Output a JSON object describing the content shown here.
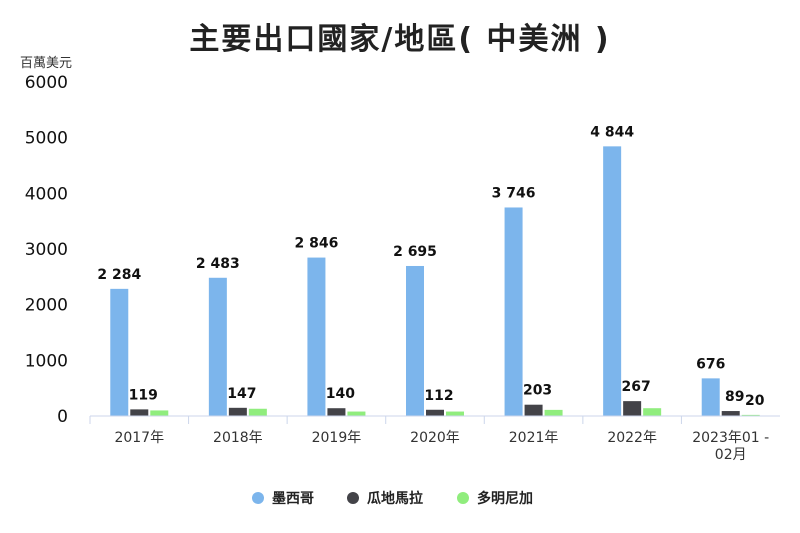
{
  "chart_data": {
    "type": "bar",
    "title": "主要出口國家/地區( 中美洲 )",
    "ylabel": "百萬美元",
    "xlabel": "",
    "ylim": [
      0,
      6000
    ],
    "yticks": [
      0,
      1000,
      2000,
      3000,
      4000,
      5000,
      6000
    ],
    "categories": [
      [
        "2017年"
      ],
      [
        "2018年"
      ],
      [
        "2019年"
      ],
      [
        "2020年"
      ],
      [
        "2021年"
      ],
      [
        "2022年"
      ],
      [
        "2023年01 -",
        "02月"
      ]
    ],
    "series": [
      {
        "name": "墨西哥",
        "color": "#7cb5ec",
        "values": [
          2284,
          2483,
          2846,
          2695,
          3746,
          4844,
          676
        ],
        "labels": [
          "2 284",
          "2 483",
          "2 846",
          "2 695",
          "3 746",
          "4 844",
          "676"
        ]
      },
      {
        "name": "瓜地馬拉",
        "color": "#434348",
        "values": [
          119,
          147,
          140,
          112,
          203,
          267,
          89
        ],
        "labels": [
          "119",
          "147",
          "140",
          "112",
          "203",
          "267",
          "89"
        ]
      },
      {
        "name": "多明尼加",
        "color": "#90ed7d",
        "values": [
          100,
          130,
          80,
          80,
          110,
          140,
          20
        ],
        "labels": [
          "",
          "",
          "",
          "",
          "",
          "",
          "20"
        ]
      }
    ],
    "legend_position": "bottom",
    "grid": false
  }
}
